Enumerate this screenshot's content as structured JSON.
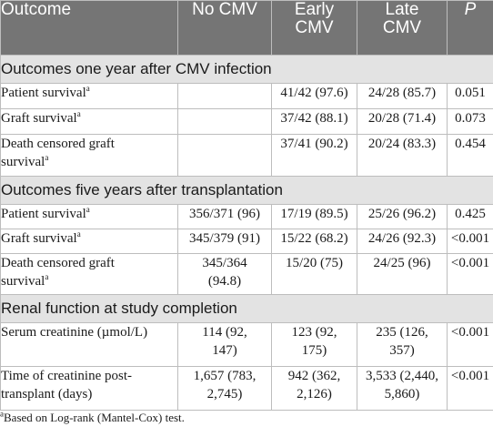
{
  "header": {
    "outcome": "Outcome",
    "no_cmv": "No CMV",
    "early_cmv_1": "Early",
    "early_cmv_2": "CMV",
    "late_cmv_1": "Late",
    "late_cmv_2": "CMV",
    "p": "P"
  },
  "sections": [
    {
      "title": "Outcomes one year after CMV infection",
      "rows": [
        {
          "label_1": "Patient survival",
          "sup": "a",
          "no_cmv": "",
          "early": "41/42 (97.6)",
          "late": "24/28 (85.7)",
          "p": "0.051"
        },
        {
          "label_1": "Graft survival",
          "sup": "a",
          "no_cmv": "",
          "early": "37/42 (88.1)",
          "late": "20/28 (71.4)",
          "p": "0.073"
        },
        {
          "label_1": "Death censored graft",
          "label_2": "survival",
          "sup": "a",
          "no_cmv": "",
          "early": "37/41 (90.2)",
          "late": "20/24 (83.3)",
          "p": "0.454"
        }
      ]
    },
    {
      "title": "Outcomes five years after transplantation",
      "rows": [
        {
          "label_1": "Patient survival",
          "sup": "a",
          "no_cmv": "356/371 (96)",
          "early": "17/19 (89.5)",
          "late": "25/26 (96.2)",
          "p": "0.425"
        },
        {
          "label_1": "Graft survival",
          "sup": "a",
          "no_cmv": "345/379 (91)",
          "early": "15/22 (68.2)",
          "late": "24/26 (92.3)",
          "p": "<0.001"
        },
        {
          "label_1": "Death censored graft",
          "label_2": "survival",
          "sup": "a",
          "no_cmv_1": "345/364",
          "no_cmv_2": "(94.8)",
          "early": "15/20 (75)",
          "late": "24/25 (96)",
          "p": "<0.001"
        }
      ]
    },
    {
      "title": "Renal function at study completion",
      "rows": [
        {
          "label_1": "Serum creatinine (µmol/L)",
          "no_cmv_1": "114 (92,",
          "no_cmv_2": "147)",
          "early_1": "123 (92,",
          "early_2": "175)",
          "late_1": "235 (126,",
          "late_2": "357)",
          "p": "<0.001"
        },
        {
          "label_1": "Time of creatinine post-",
          "label_2": "transplant (days)",
          "no_cmv_1": "1,657 (783,",
          "no_cmv_2": "2,745)",
          "early_1": "942 (362,",
          "early_2": "2,126)",
          "late_1": "3,533 (2,440,",
          "late_2": "5,860)",
          "p": "<0.001"
        }
      ]
    }
  ],
  "footnote": {
    "sup": "a",
    "text": "Based on Log-rank (Mantel-Cox) test."
  }
}
